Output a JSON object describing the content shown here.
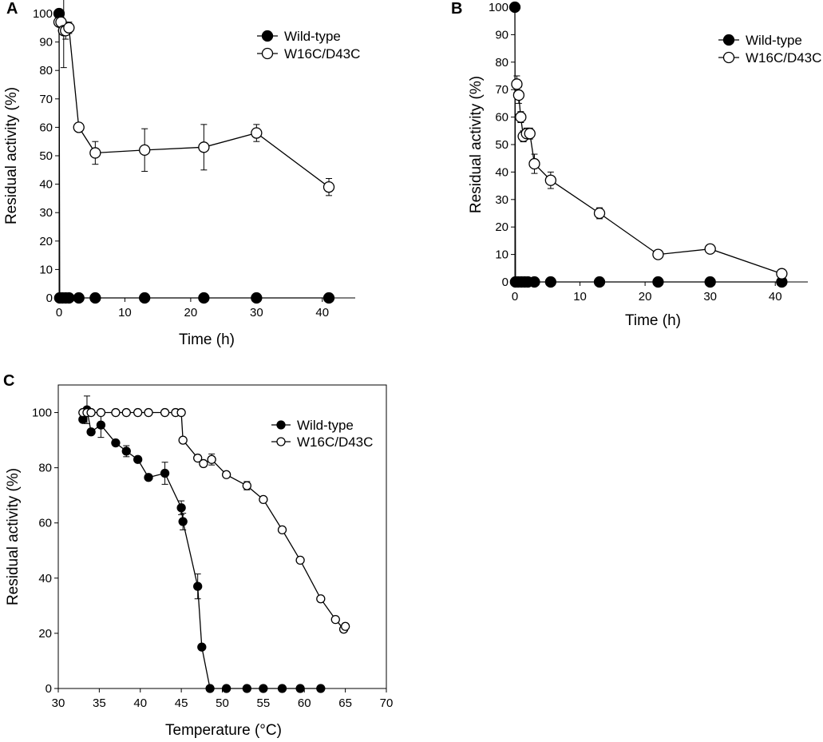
{
  "figure": {
    "panels": [
      "A",
      "B",
      "C"
    ]
  },
  "colors": {
    "ink": "#000000",
    "open_fill": "#ffffff"
  },
  "chart_data": [
    {
      "panel": "A",
      "type": "scatter",
      "xlabel": "Time (h)",
      "ylabel": "Residual activity (%)",
      "xlim": [
        0,
        45
      ],
      "ylim": [
        0,
        100
      ],
      "xticks": [
        "0",
        "10",
        "20",
        "30",
        "40"
      ],
      "yticks": [
        "0",
        "10",
        "20",
        "30",
        "40",
        "50",
        "60",
        "70",
        "80",
        "90",
        "100"
      ],
      "legend": {
        "position": "top-right",
        "entries": [
          "Wild-type",
          "W16C/D43C"
        ]
      },
      "series": [
        {
          "name": "Wild-type",
          "marker": "filled-circle",
          "x": [
            0,
            0.1,
            0.5,
            1,
            1.5,
            3,
            5.5,
            13,
            22,
            30,
            41
          ],
          "y": [
            100,
            0,
            0,
            0,
            0,
            0,
            0,
            0,
            0,
            0,
            0
          ],
          "err": [
            0,
            0,
            0,
            0,
            0,
            0,
            0,
            0,
            0,
            0,
            0
          ]
        },
        {
          "name": "W16C/D43C",
          "marker": "open-circle",
          "x": [
            0,
            0.3,
            0.7,
            1.0,
            1.5,
            3,
            5.5,
            13,
            22,
            30,
            41
          ],
          "y": [
            97,
            97,
            94,
            94,
            95,
            60,
            51,
            52,
            53,
            58,
            39
          ],
          "err": [
            0,
            3,
            13,
            3,
            2,
            0,
            4,
            7.5,
            8,
            3,
            3
          ]
        }
      ]
    },
    {
      "panel": "B",
      "type": "scatter",
      "xlabel": "Time (h)",
      "ylabel": "Residual activity (%)",
      "xlim": [
        0,
        45
      ],
      "ylim": [
        0,
        100
      ],
      "xticks": [
        "0",
        "10",
        "20",
        "30",
        "40"
      ],
      "yticks": [
        "0",
        "10",
        "20",
        "30",
        "40",
        "50",
        "60",
        "70",
        "80",
        "90",
        "100"
      ],
      "legend": {
        "position": "top-right",
        "entries": [
          "Wild-type",
          "W16C/D43C"
        ]
      },
      "series": [
        {
          "name": "Wild-type",
          "marker": "filled-circle",
          "x": [
            0,
            0.1,
            0.5,
            1,
            1.5,
            2,
            3,
            5.5,
            13,
            22,
            30,
            41
          ],
          "y": [
            100,
            0,
            0,
            0,
            0,
            0,
            0,
            0,
            0,
            0,
            0,
            0
          ],
          "err": [
            0,
            0,
            0,
            0,
            0,
            0,
            0,
            0,
            0,
            0,
            0,
            0
          ]
        },
        {
          "name": "W16C/D43C",
          "marker": "open-circle",
          "x": [
            0.3,
            0.6,
            0.9,
            1.3,
            1.8,
            2.3,
            3,
            5.5,
            13,
            22,
            30,
            41
          ],
          "y": [
            72,
            68,
            60,
            53,
            54,
            54,
            43,
            37,
            25,
            10,
            12,
            3
          ],
          "err": [
            3,
            3,
            2,
            2,
            2,
            2,
            3.5,
            3,
            2,
            1,
            1,
            1
          ]
        }
      ]
    },
    {
      "panel": "C",
      "type": "line",
      "xlabel": "Temperature (°C)",
      "ylabel": "Residual activity (%)",
      "xlim": [
        30,
        70
      ],
      "ylim": [
        0,
        110
      ],
      "xticks": [
        "30",
        "35",
        "40",
        "45",
        "50",
        "55",
        "60",
        "65",
        "70"
      ],
      "yticks": [
        "0",
        "20",
        "40",
        "60",
        "80",
        "100"
      ],
      "legend": {
        "position": "top-right",
        "entries": [
          "Wild-type",
          "W16C/D43C"
        ]
      },
      "series": [
        {
          "name": "Wild-type",
          "marker": "filled-circle",
          "x": [
            33,
            33.5,
            34,
            35.2,
            37,
            38.3,
            39.7,
            41,
            43,
            45,
            45.2,
            47,
            47.5,
            48.5,
            50.5,
            53,
            55,
            57.3,
            59.5,
            62
          ],
          "y": [
            97.5,
            101,
            93,
            95.5,
            89,
            86,
            83,
            76.5,
            78,
            65.5,
            60.5,
            37,
            15,
            0,
            0,
            0,
            0,
            0,
            0,
            0
          ],
          "err": [
            0,
            5,
            0,
            4.5,
            0,
            2,
            0,
            0,
            4,
            2.5,
            3,
            4.5,
            0,
            0,
            0,
            0,
            0,
            0,
            0,
            0
          ]
        },
        {
          "name": "W16C/D43C",
          "marker": "open-circle",
          "x": [
            33,
            33.5,
            34,
            35.2,
            37,
            38.3,
            39.7,
            41,
            43,
            44.3,
            45,
            45.2,
            47,
            47.7,
            48.7,
            50.5,
            53,
            55,
            57.3,
            59.5,
            62,
            63.8,
            64.8,
            65
          ],
          "y": [
            100,
            100,
            100,
            100,
            100,
            100,
            100,
            100,
            100,
            100,
            100,
            90,
            83.5,
            81.5,
            83,
            77.5,
            73.5,
            68.5,
            57.5,
            46.5,
            32.5,
            25,
            21.5,
            22.5
          ],
          "err": [
            0,
            0,
            0,
            0,
            0,
            0,
            0,
            0,
            0,
            0,
            0,
            0,
            1,
            1,
            2,
            0,
            1.5,
            1,
            0,
            0,
            0,
            0,
            1,
            1
          ]
        }
      ]
    }
  ]
}
